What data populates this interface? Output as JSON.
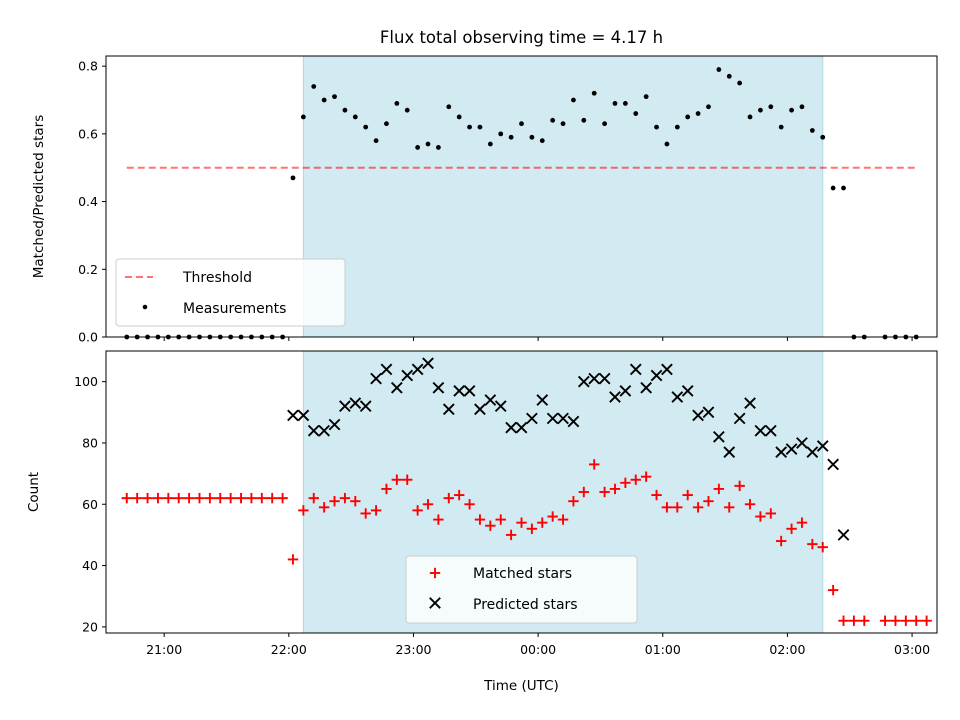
{
  "chart_data": [
    {
      "type": "scatter",
      "title": "Flux total observing time = 4.17 h",
      "xlabel": "",
      "ylabel": "Matched/Predicted stars",
      "ylim": [
        0.0,
        0.83
      ],
      "yticks": [
        "0.0",
        "0.2",
        "0.4",
        "0.6",
        "0.8"
      ],
      "xlim": [
        "20:32",
        "03:12"
      ],
      "shaded_interval": [
        "22:07",
        "02:17"
      ],
      "colors": {
        "shade": "#add8e6",
        "threshold": "#ff0000",
        "measurements": "#000000"
      },
      "threshold": {
        "name": "Threshold",
        "y": 0.5,
        "x_range": [
          "20:42",
          "03:02"
        ]
      },
      "legend": {
        "position": "lower-left",
        "entries": [
          "Threshold",
          "Measurements"
        ]
      },
      "series": [
        {
          "name": "Measurements",
          "x": [
            "20:42",
            "20:47",
            "20:52",
            "20:57",
            "21:02",
            "21:07",
            "21:12",
            "21:17",
            "21:22",
            "21:27",
            "21:32",
            "21:37",
            "21:42",
            "21:47",
            "21:52",
            "21:57",
            "22:02",
            "22:07",
            "22:12",
            "22:17",
            "22:22",
            "22:27",
            "22:32",
            "22:37",
            "22:42",
            "22:47",
            "22:52",
            "22:57",
            "23:02",
            "23:07",
            "23:12",
            "23:17",
            "23:22",
            "23:27",
            "23:32",
            "23:37",
            "23:42",
            "23:47",
            "23:52",
            "23:57",
            "00:02",
            "00:07",
            "00:12",
            "00:17",
            "00:22",
            "00:27",
            "00:32",
            "00:37",
            "00:42",
            "00:47",
            "00:52",
            "00:57",
            "01:02",
            "01:07",
            "01:12",
            "01:17",
            "01:22",
            "01:27",
            "01:32",
            "01:37",
            "01:42",
            "01:47",
            "01:52",
            "01:57",
            "02:02",
            "02:07",
            "02:12",
            "02:17",
            "02:22",
            "02:27",
            "02:32",
            "02:37",
            "02:42",
            "02:47",
            "02:52",
            "02:57",
            "03:02",
            "03:07"
          ],
          "y": [
            0.0,
            0.0,
            0.0,
            0.0,
            0.0,
            0.0,
            0.0,
            0.0,
            0.0,
            0.0,
            0.0,
            0.0,
            0.0,
            0.0,
            0.0,
            0.0,
            0.47,
            0.65,
            0.74,
            0.7,
            0.71,
            0.67,
            0.65,
            0.62,
            0.58,
            0.63,
            0.69,
            0.67,
            0.56,
            0.57,
            0.56,
            0.68,
            0.65,
            0.62,
            0.62,
            0.57,
            0.6,
            0.59,
            0.63,
            0.59,
            0.58,
            0.64,
            0.63,
            0.7,
            0.64,
            0.72,
            0.63,
            0.69,
            0.69,
            0.66,
            0.71,
            0.62,
            0.57,
            0.62,
            0.65,
            0.66,
            0.68,
            0.79,
            0.77,
            0.75,
            0.65,
            0.67,
            0.68,
            0.62,
            0.67,
            0.68,
            0.61,
            0.59,
            0.44,
            0.44,
            0.0,
            0.0,
            null,
            0.0,
            0.0,
            0.0,
            0.0,
            null
          ]
        }
      ]
    },
    {
      "type": "scatter",
      "title": "",
      "xlabel": "Time (UTC)",
      "ylabel": "Count",
      "ylim": [
        18,
        110
      ],
      "yticks": [
        "20",
        "40",
        "60",
        "80",
        "100"
      ],
      "xlim": [
        "20:32",
        "03:12"
      ],
      "xticks": [
        "21:00",
        "22:00",
        "23:00",
        "00:00",
        "01:00",
        "02:00",
        "03:00"
      ],
      "shaded_interval": [
        "22:07",
        "02:17"
      ],
      "colors": {
        "shade": "#add8e6",
        "matched": "#ff0000",
        "predicted": "#000000"
      },
      "legend": {
        "position": "lower-center",
        "entries": [
          "Matched stars",
          "Predicted stars"
        ]
      },
      "series": [
        {
          "name": "Matched stars",
          "marker": "plus",
          "x": [
            "20:42",
            "20:47",
            "20:52",
            "20:57",
            "21:02",
            "21:07",
            "21:12",
            "21:17",
            "21:22",
            "21:27",
            "21:32",
            "21:37",
            "21:42",
            "21:47",
            "21:52",
            "21:57",
            "22:02",
            "22:07",
            "22:12",
            "22:17",
            "22:22",
            "22:27",
            "22:32",
            "22:37",
            "22:42",
            "22:47",
            "22:52",
            "22:57",
            "23:02",
            "23:07",
            "23:12",
            "23:17",
            "23:22",
            "23:27",
            "23:32",
            "23:37",
            "23:42",
            "23:47",
            "23:52",
            "23:57",
            "00:02",
            "00:07",
            "00:12",
            "00:17",
            "00:22",
            "00:27",
            "00:32",
            "00:37",
            "00:42",
            "00:47",
            "00:52",
            "00:57",
            "01:02",
            "01:07",
            "01:12",
            "01:17",
            "01:22",
            "01:27",
            "01:32",
            "01:37",
            "01:42",
            "01:47",
            "01:52",
            "01:57",
            "02:02",
            "02:07",
            "02:12",
            "02:17",
            "02:22",
            "02:27",
            "02:32",
            "02:37",
            "02:42",
            "02:47",
            "02:52",
            "02:57",
            "03:02",
            "03:07"
          ],
          "y": [
            62,
            62,
            62,
            62,
            62,
            62,
            62,
            62,
            62,
            62,
            62,
            62,
            62,
            62,
            62,
            62,
            42,
            58,
            62,
            59,
            61,
            62,
            61,
            57,
            58,
            65,
            68,
            68,
            58,
            60,
            55,
            62,
            63,
            60,
            55,
            53,
            55,
            50,
            54,
            52,
            54,
            56,
            55,
            61,
            64,
            73,
            64,
            65,
            67,
            68,
            69,
            63,
            59,
            59,
            63,
            59,
            61,
            65,
            59,
            66,
            60,
            56,
            57,
            48,
            52,
            54,
            47,
            46,
            32,
            22,
            22,
            22,
            null,
            22,
            22,
            22,
            22,
            22
          ]
        },
        {
          "name": "Predicted stars",
          "marker": "x",
          "x": [
            "22:02",
            "22:07",
            "22:12",
            "22:17",
            "22:22",
            "22:27",
            "22:32",
            "22:37",
            "22:42",
            "22:47",
            "22:52",
            "22:57",
            "23:02",
            "23:07",
            "23:12",
            "23:17",
            "23:22",
            "23:27",
            "23:32",
            "23:37",
            "23:42",
            "23:47",
            "23:52",
            "23:57",
            "00:02",
            "00:07",
            "00:12",
            "00:17",
            "00:22",
            "00:27",
            "00:32",
            "00:37",
            "00:42",
            "00:47",
            "00:52",
            "00:57",
            "01:02",
            "01:07",
            "01:12",
            "01:17",
            "01:22",
            "01:27",
            "01:32",
            "01:37",
            "01:42",
            "01:47",
            "01:52",
            "01:57",
            "02:02",
            "02:07",
            "02:12",
            "02:17",
            "02:22",
            "02:27"
          ],
          "y": [
            89,
            89,
            84,
            84,
            86,
            92,
            93,
            92,
            101,
            104,
            98,
            102,
            104,
            106,
            98,
            91,
            97,
            97,
            91,
            94,
            92,
            85,
            85,
            88,
            94,
            88,
            88,
            87,
            100,
            101,
            101,
            95,
            97,
            104,
            98,
            102,
            104,
            95,
            97,
            89,
            90,
            82,
            77,
            88,
            93,
            84,
            84,
            77,
            78,
            80,
            77,
            79,
            73,
            50
          ]
        }
      ]
    }
  ]
}
